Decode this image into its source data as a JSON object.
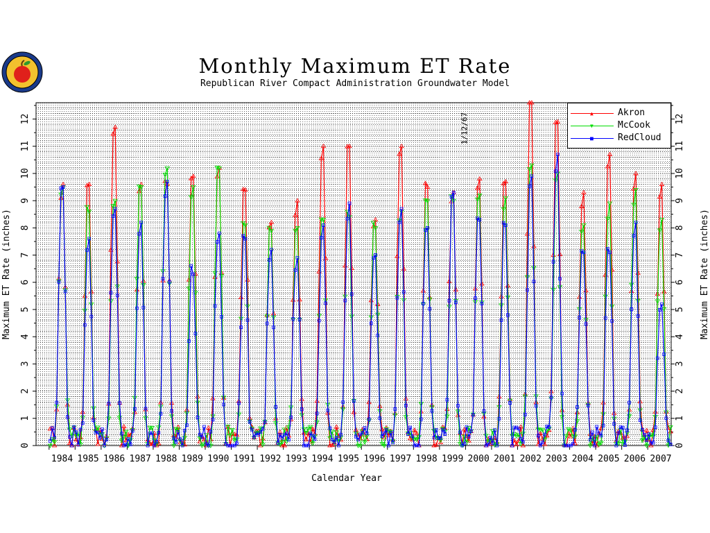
{
  "chart_data": {
    "type": "line",
    "title": "Monthly Maximum ET Rate",
    "subtitle": "Republican River Compact Administration Groundwater Model",
    "xlabel": "Calendar Year",
    "ylabel": "Maximum ET Rate (inches)",
    "annotation": "1/12/67",
    "xlim": [
      1983.5,
      2007.9
    ],
    "ylim": [
      0,
      12.6
    ],
    "yticks": [
      0,
      1,
      2,
      3,
      4,
      5,
      6,
      7,
      8,
      9,
      10,
      11,
      12
    ],
    "xtick_labels": [
      "1984",
      "1985",
      "1986",
      "1987",
      "1988",
      "1989",
      "1990",
      "1991",
      "1992",
      "1993",
      "1994",
      "1995",
      "1996",
      "1997",
      "1998",
      "1999",
      "2000",
      "2001",
      "2002",
      "2003",
      "2004",
      "2005",
      "2006",
      "2007"
    ],
    "grid": true,
    "legend_position": "top-right",
    "years": [
      1984,
      1985,
      1986,
      1987,
      1988,
      1989,
      1990,
      1991,
      1992,
      1993,
      1994,
      1995,
      1996,
      1997,
      1998,
      1999,
      2000,
      2001,
      2002,
      2003,
      2004,
      2005,
      2006,
      2007
    ],
    "series": [
      {
        "name": "Akron",
        "color": "#ff0000",
        "marker": "triangle",
        "annual_peak": [
          9.6,
          9.6,
          11.7,
          9.6,
          9.6,
          9.9,
          10.2,
          9.4,
          8.2,
          9.0,
          11.0,
          11.0,
          8.3,
          11.0,
          9.5,
          9.3,
          9.8,
          9.7,
          12.6,
          11.9,
          9.3,
          10.7,
          10.0,
          9.6
        ]
      },
      {
        "name": "McCook",
        "color": "#00dd00",
        "marker": "triangle-down",
        "annual_peak": [
          9.5,
          8.6,
          9.0,
          9.5,
          10.2,
          9.5,
          10.2,
          8.1,
          7.9,
          8.0,
          8.3,
          8.4,
          8.0,
          8.6,
          9.0,
          9.0,
          9.2,
          9.1,
          10.3,
          10.0,
          8.1,
          8.9,
          9.4,
          8.3
        ]
      },
      {
        "name": "RedCloud",
        "color": "#0000ff",
        "marker": "square",
        "annual_peak": [
          9.5,
          7.6,
          8.7,
          8.2,
          9.7,
          6.3,
          7.8,
          7.6,
          7.2,
          6.9,
          8.1,
          8.9,
          7.0,
          8.7,
          8.0,
          9.3,
          8.3,
          8.1,
          9.9,
          10.7,
          7.1,
          7.1,
          8.2,
          5.2
        ]
      }
    ]
  },
  "colors": {
    "axis": "#000000",
    "grid": "#000000",
    "background": "#ffffff"
  }
}
